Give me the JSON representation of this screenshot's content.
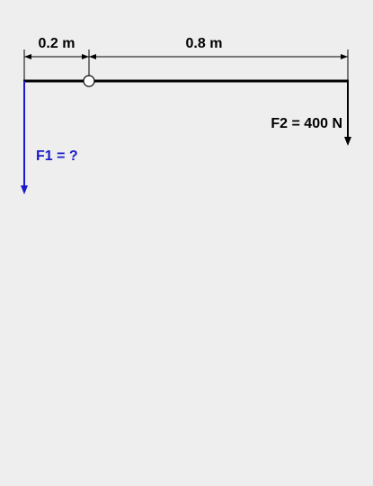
{
  "dimensions": {
    "left_span": "0.2 m",
    "right_span": "0.8 m"
  },
  "forces": {
    "f1_label": "F1 = ?",
    "f2_label": "F2 = 400 N"
  },
  "colors": {
    "background": "#eeeeee",
    "beam": "#000000",
    "f1": "#1a1acc",
    "f2": "#000000",
    "dimension": "#000000",
    "pivot_fill": "#ffffff"
  }
}
